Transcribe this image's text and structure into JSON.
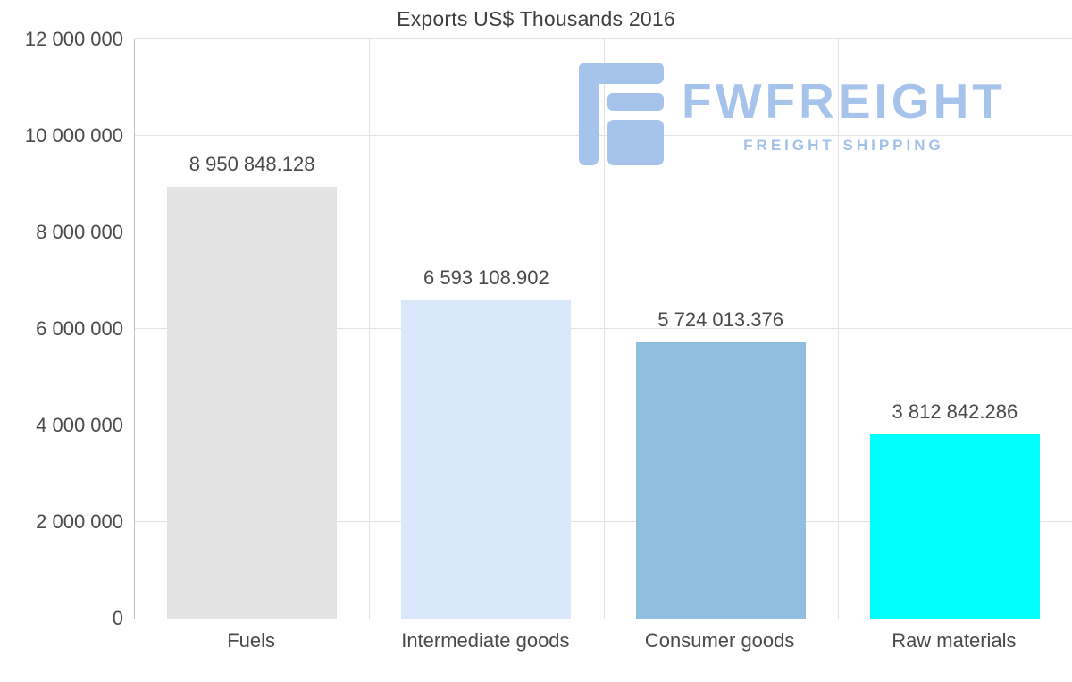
{
  "chart_data": {
    "type": "bar",
    "title": "Exports US$ Thousands 2016",
    "categories": [
      "Fuels",
      "Intermediate goods",
      "Consumer goods",
      "Raw materials"
    ],
    "values": [
      8950848.128,
      6593108.902,
      5724013.376,
      3812842.286
    ],
    "value_labels": [
      "8 950 848.128",
      "6 593 108.902",
      "5 724 013.376",
      "3 812 842.286"
    ],
    "bar_colors": [
      "#e3e3e3",
      "#d9e9fb",
      "#8fbedf",
      "#00ffff"
    ],
    "ylim": [
      0,
      12000000
    ],
    "yticks": [
      0,
      2000000,
      4000000,
      6000000,
      8000000,
      10000000,
      12000000
    ],
    "ytick_labels": [
      "0",
      "2 000 000",
      "4 000 000",
      "6 000 000",
      "8 000 000",
      "10 000 000",
      "12 000 000"
    ],
    "grid": true,
    "legend": "none",
    "xlabel": "",
    "ylabel": ""
  },
  "logo": {
    "brand": "FWFREIGHT",
    "tagline": "FREIGHT SHIPPING",
    "color": "#a6c3ec"
  }
}
